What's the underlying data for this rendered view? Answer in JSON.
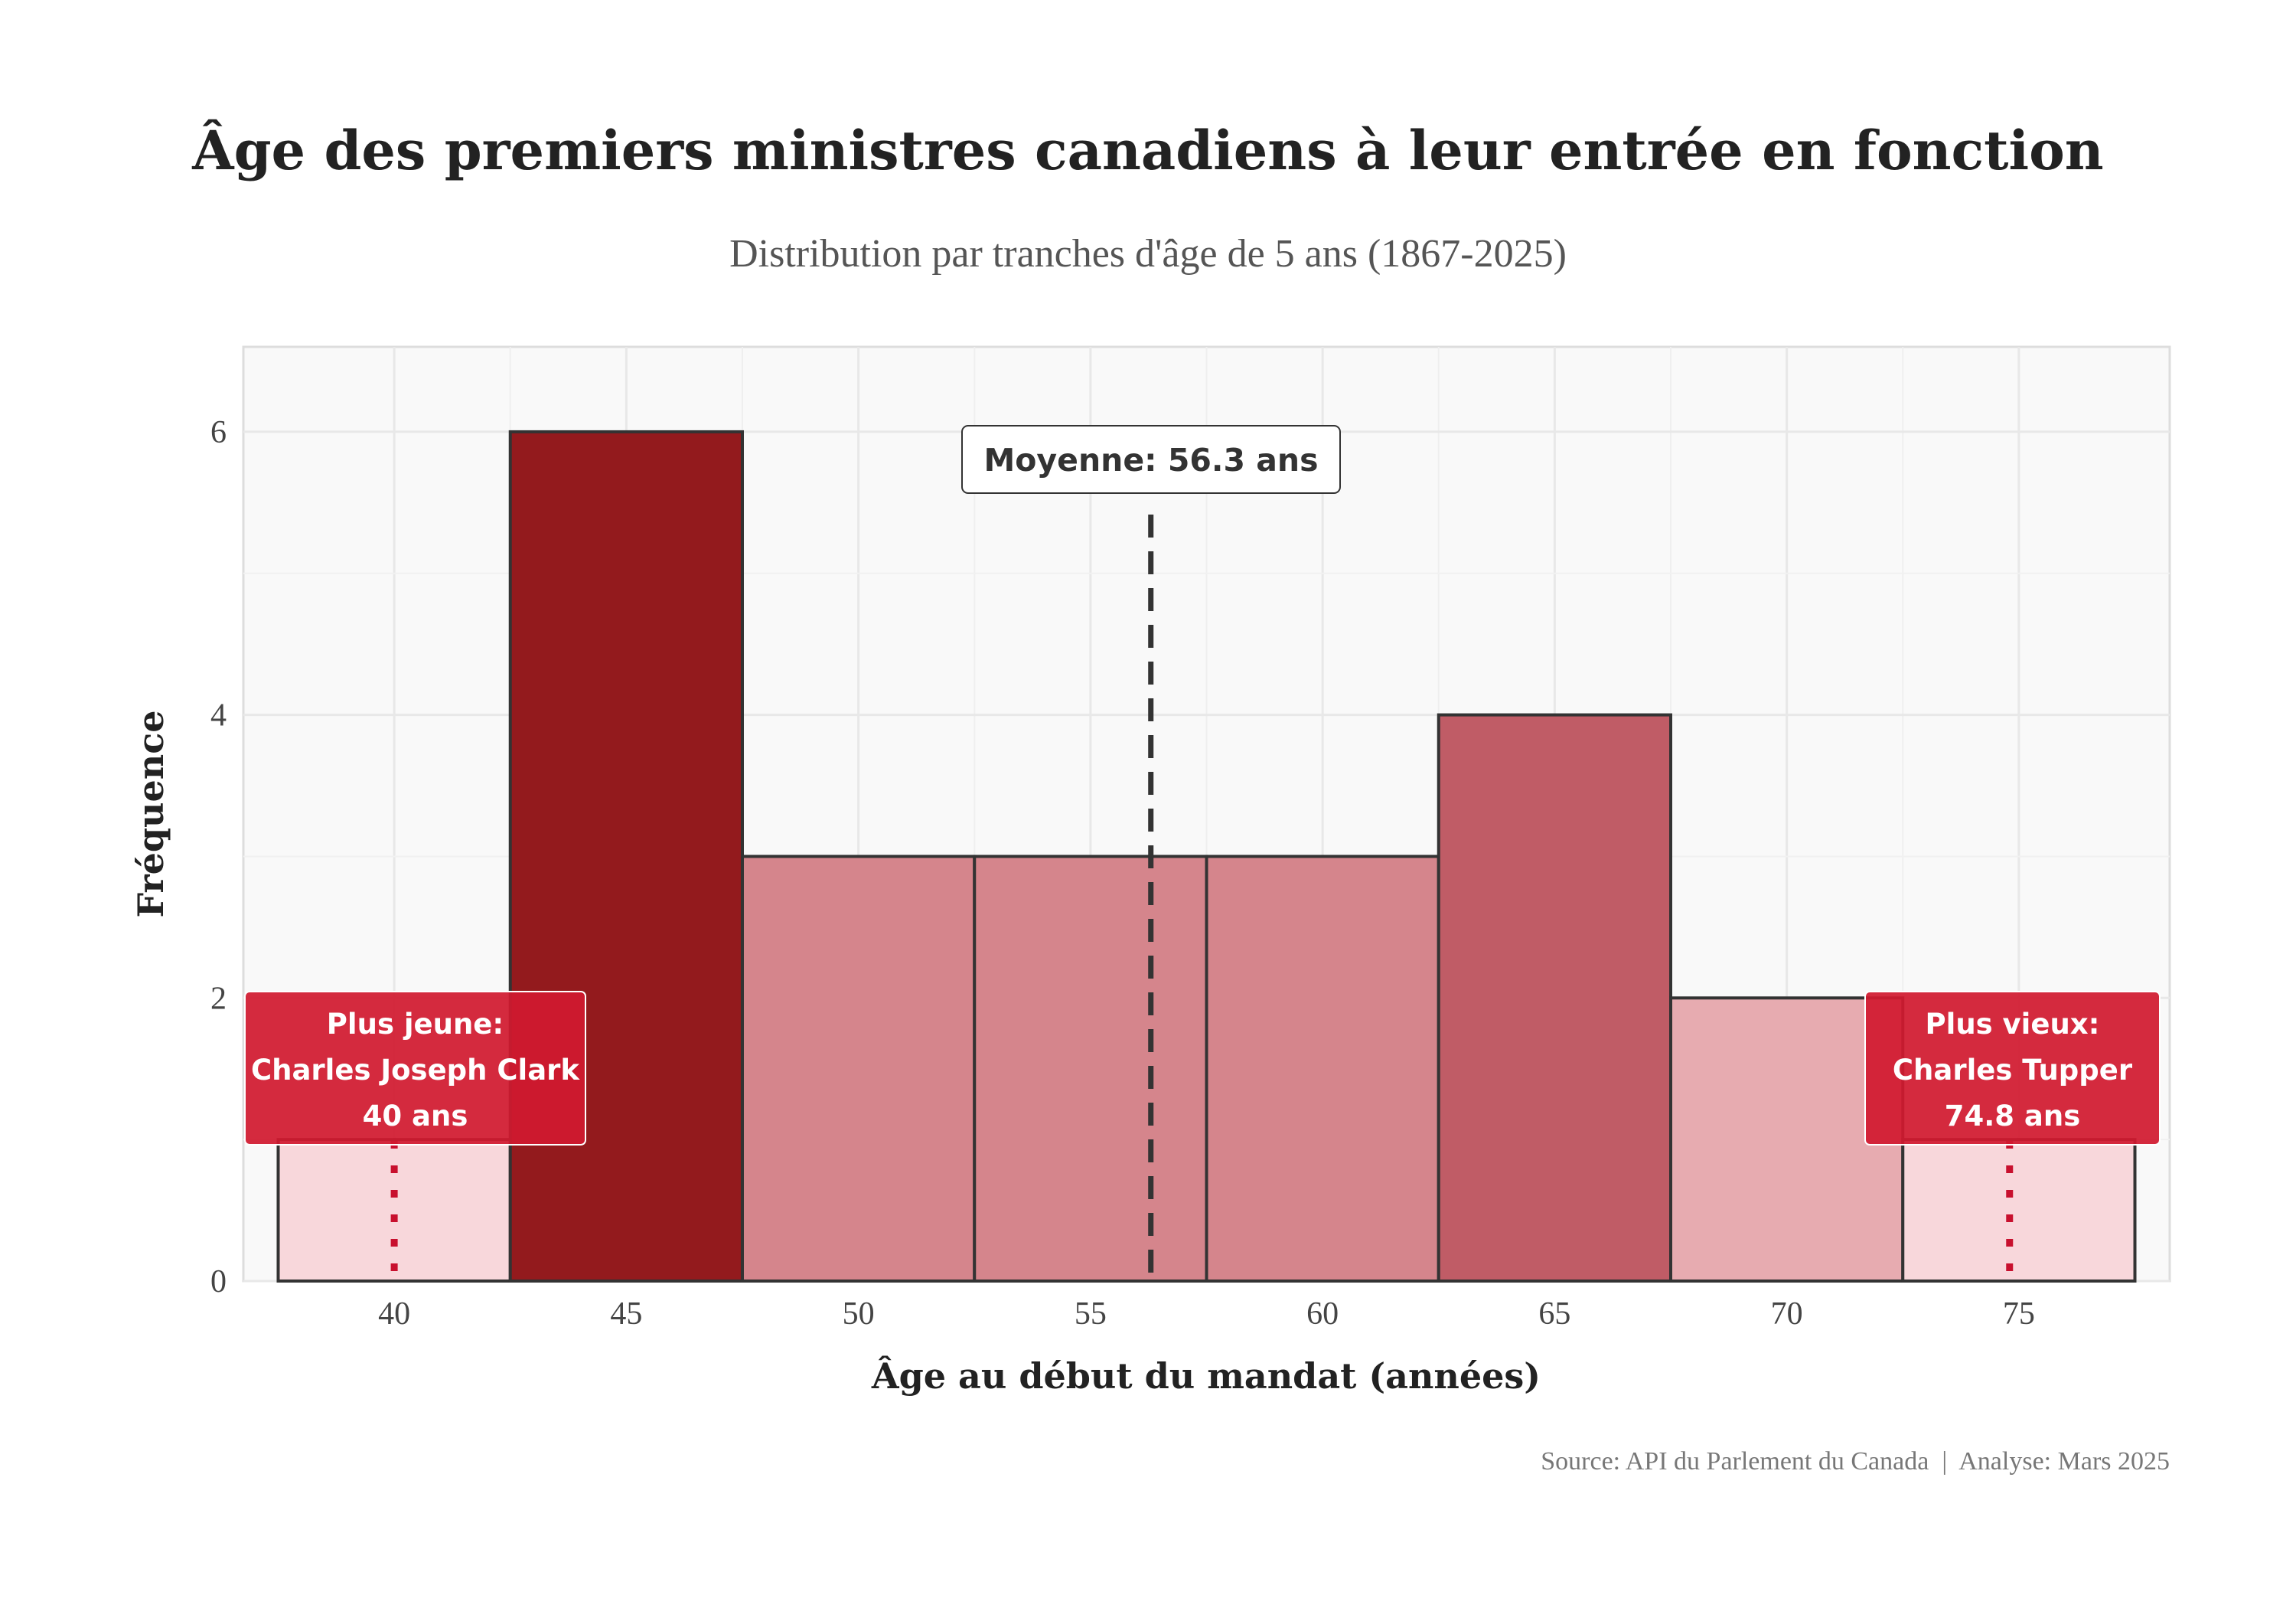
{
  "chart_data": {
    "type": "bar",
    "title": "Âge des premiers ministres canadiens à leur entrée en fonction",
    "subtitle": "Distribution par tranches d'âge de 5 ans (1867-2025)",
    "xlabel": "Âge au début du mandat (années)",
    "ylabel": "Fréquence",
    "x_ticks": [
      "40",
      "45",
      "50",
      "55",
      "60",
      "65",
      "70",
      "75"
    ],
    "y_ticks": [
      "0",
      "2",
      "4",
      "6"
    ],
    "xlim": [
      36.75,
      78.25
    ],
    "ylim": [
      0,
      6.6
    ],
    "bin_width": 5,
    "bins": [
      {
        "center": 40,
        "count": 1,
        "color": "#f8d7db"
      },
      {
        "center": 45,
        "count": 6,
        "color": "#931a1d"
      },
      {
        "center": 50,
        "count": 3,
        "color": "#d5858c"
      },
      {
        "center": 55,
        "count": 3,
        "color": "#d5858c"
      },
      {
        "center": 60,
        "count": 3,
        "color": "#d5858c"
      },
      {
        "center": 65,
        "count": 4,
        "color": "#c05c66"
      },
      {
        "center": 70,
        "count": 2,
        "color": "#e7abb0"
      },
      {
        "center": 75,
        "count": 1,
        "color": "#f8d7db"
      }
    ],
    "mean": {
      "value": 56.3,
      "label": "Moyenne: 56.3 ans"
    },
    "youngest": {
      "value": 40,
      "line1": "Plus jeune:",
      "line2": "Charles Joseph Clark",
      "line3": "40 ans"
    },
    "oldest": {
      "value": 74.8,
      "line1": "Plus vieux:",
      "line2": "Charles Tupper",
      "line3": "74.8 ans"
    },
    "grid": true,
    "accent_color": "#c8102e"
  },
  "footer": {
    "caption": "Source: API du Parlement du Canada  |  Analyse: Mars 2025"
  }
}
